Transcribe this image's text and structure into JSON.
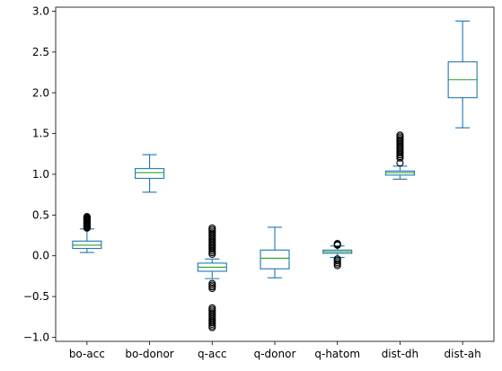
{
  "chart_data": {
    "type": "box",
    "title": "",
    "xlabel": "",
    "ylabel": "",
    "ylim": [
      -1.05,
      3.05
    ],
    "yticks": [
      -1.0,
      -0.5,
      0.0,
      0.5,
      1.0,
      1.5,
      2.0,
      2.5,
      3.0
    ],
    "ytick_labels": [
      "−1.0",
      "−0.5",
      "0.0",
      "0.5",
      "1.0",
      "1.5",
      "2.0",
      "2.5",
      "3.0"
    ],
    "grid": false,
    "colors": {
      "box": "#1f77b4",
      "median": "#2ca02c",
      "flier": "#000000",
      "axis": "#000000"
    },
    "categories": [
      "bo-acc",
      "bo-donor",
      "q-acc",
      "q-donor",
      "q-hatom",
      "dist-dh",
      "dist-ah"
    ],
    "boxes": [
      {
        "name": "bo-acc",
        "whislo": 0.04,
        "q1": 0.09,
        "med": 0.13,
        "q3": 0.18,
        "whishi": 0.33,
        "fliers": [
          0.34,
          0.35,
          0.36,
          0.37,
          0.38,
          0.39,
          0.4,
          0.41,
          0.42,
          0.43,
          0.44,
          0.45,
          0.46,
          0.47,
          0.48
        ]
      },
      {
        "name": "bo-donor",
        "whislo": 0.78,
        "q1": 0.95,
        "med": 1.02,
        "q3": 1.07,
        "whishi": 1.24,
        "fliers": []
      },
      {
        "name": "q-acc",
        "whislo": -0.28,
        "q1": -0.19,
        "med": -0.14,
        "q3": -0.09,
        "whishi": -0.04,
        "fliers": [
          0.02,
          0.04,
          0.06,
          0.08,
          0.1,
          0.12,
          0.14,
          0.16,
          0.18,
          0.2,
          0.22,
          0.24,
          0.26,
          0.28,
          0.3,
          0.32,
          0.34,
          -0.34,
          -0.36,
          -0.38,
          -0.4,
          -0.64,
          -0.66,
          -0.68,
          -0.7,
          -0.72,
          -0.74,
          -0.76,
          -0.78,
          -0.8,
          -0.82,
          -0.84,
          -0.86,
          -0.88
        ]
      },
      {
        "name": "q-donor",
        "whislo": -0.27,
        "q1": -0.16,
        "med": -0.03,
        "q3": 0.07,
        "whishi": 0.35,
        "fliers": []
      },
      {
        "name": "q-hatom",
        "whislo": -0.02,
        "q1": 0.03,
        "med": 0.05,
        "q3": 0.07,
        "whishi": 0.12,
        "fliers": [
          0.13,
          0.14,
          0.15,
          -0.04,
          -0.06,
          -0.08,
          -0.1,
          -0.12
        ]
      },
      {
        "name": "dist-dh",
        "whislo": 0.94,
        "q1": 0.99,
        "med": 1.02,
        "q3": 1.04,
        "whishi": 1.1,
        "fliers": [
          1.14,
          1.2,
          1.22,
          1.24,
          1.26,
          1.28,
          1.3,
          1.32,
          1.34,
          1.36,
          1.38,
          1.4,
          1.42,
          1.44,
          1.46,
          1.48
        ]
      },
      {
        "name": "dist-ah",
        "whislo": 1.57,
        "q1": 1.94,
        "med": 2.16,
        "q3": 2.38,
        "whishi": 2.88,
        "fliers": []
      }
    ]
  }
}
